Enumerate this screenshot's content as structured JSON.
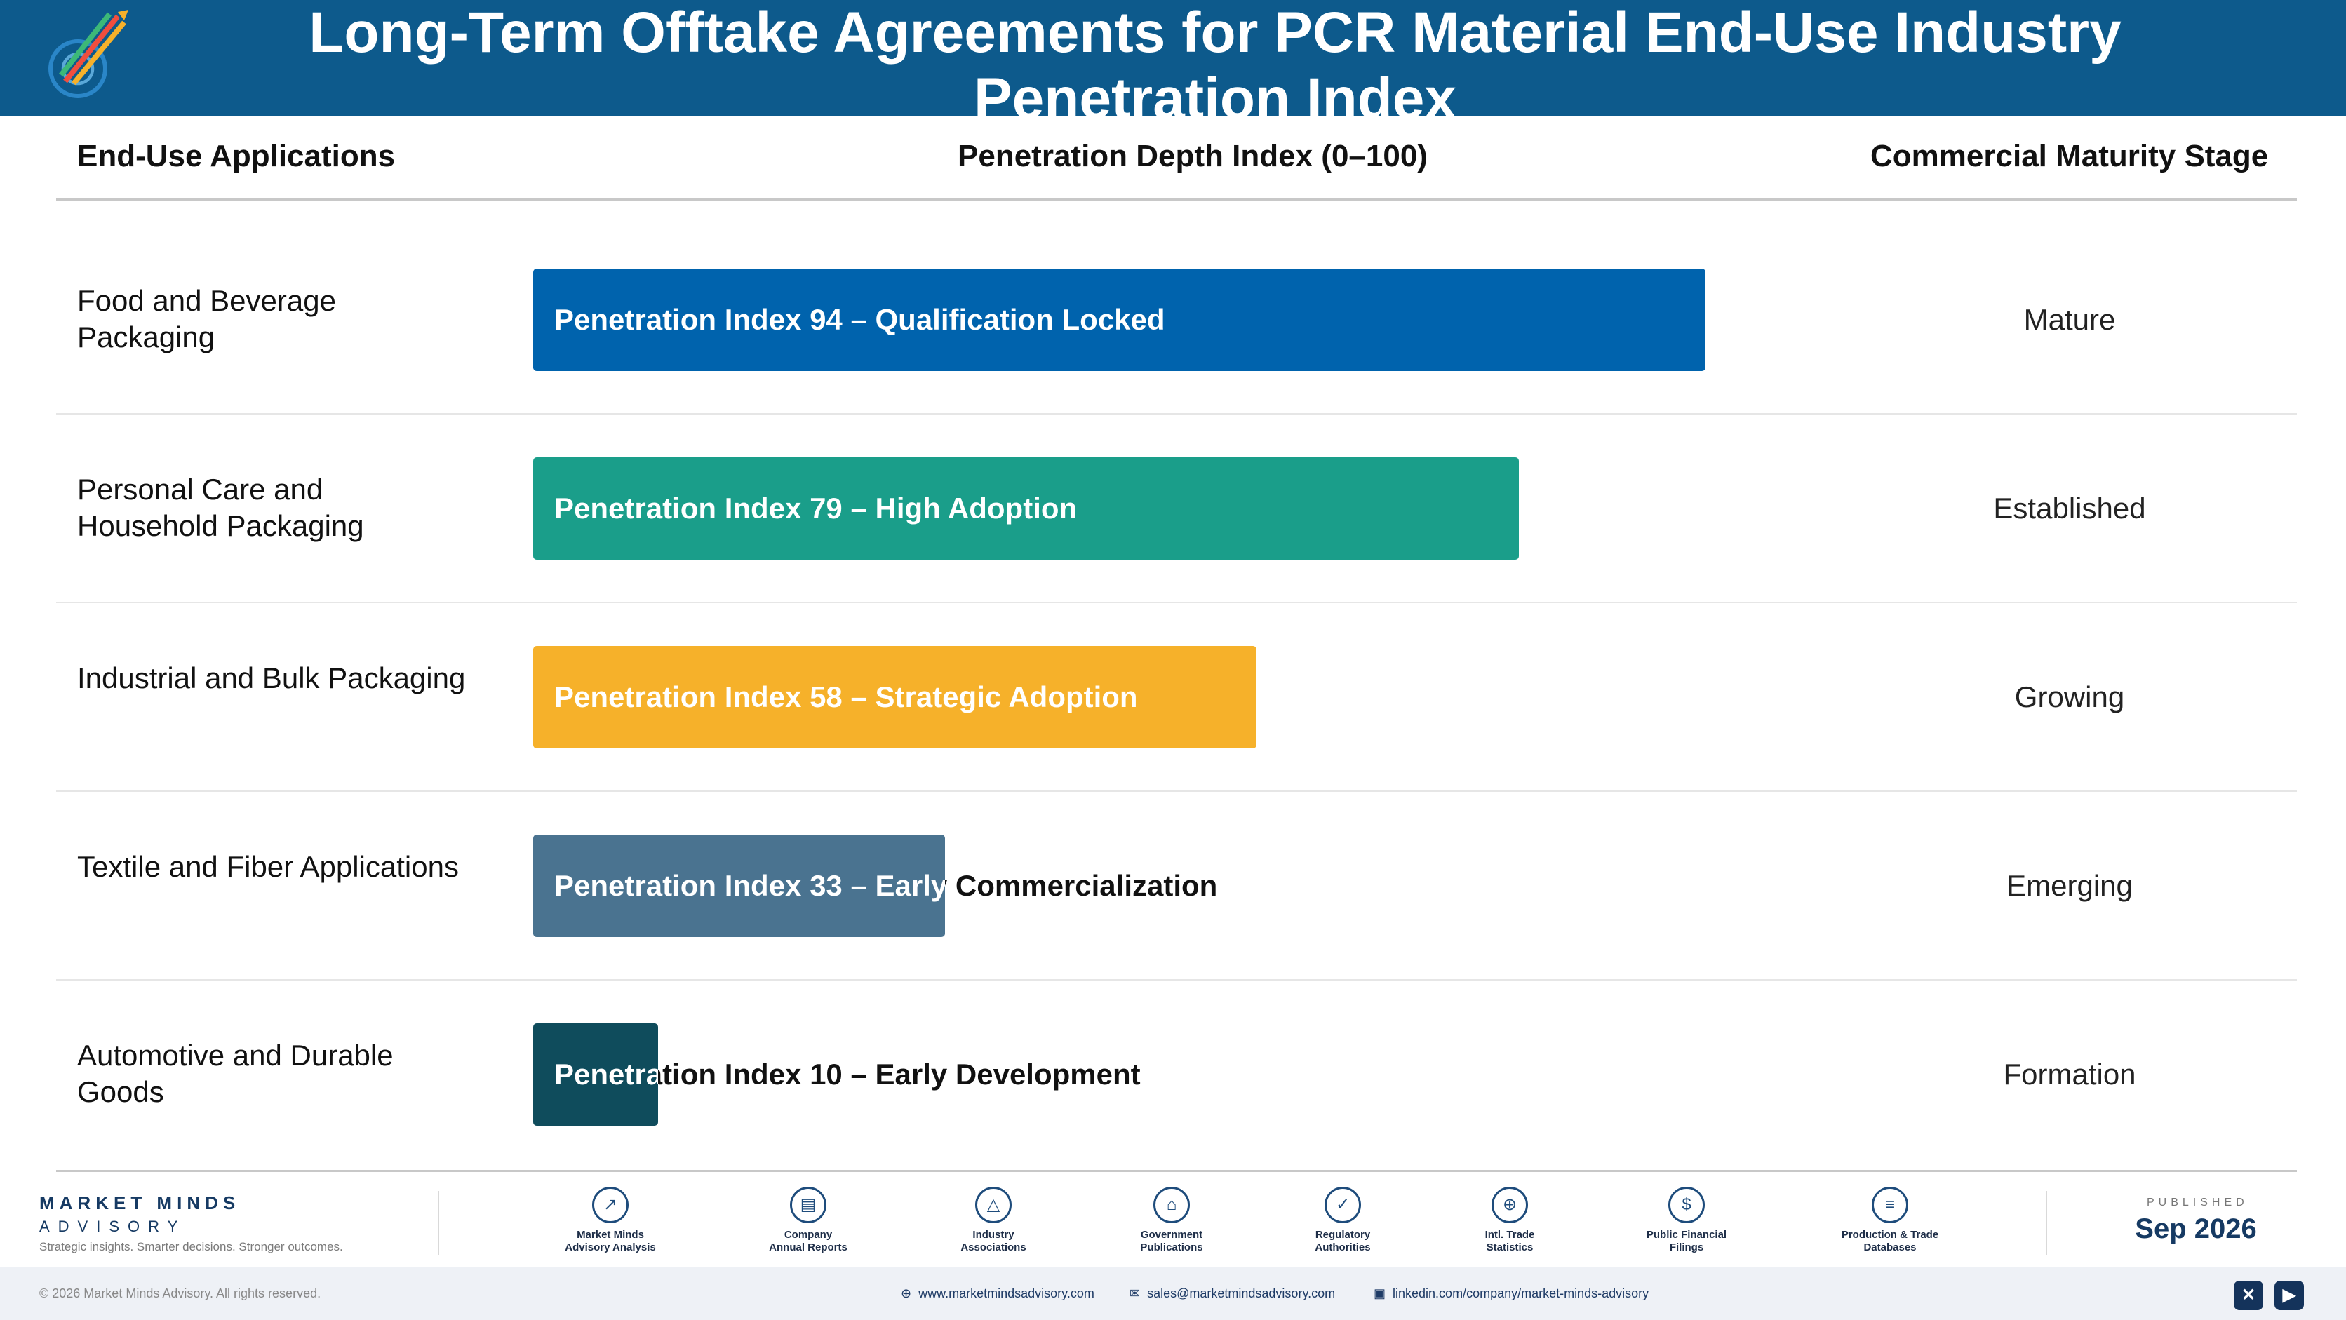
{
  "header": {
    "title": "Long-Term Offtake Agreements for PCR Material End-Use Industry Penetration Index",
    "logo_icon": "arrows-target-logo-icon"
  },
  "chart_data": {
    "type": "bar",
    "orientation": "horizontal",
    "columns": [
      "End-Use Applications",
      "Penetration Depth Index (0–100)",
      "Commercial Maturity Stage"
    ],
    "xlim": [
      0,
      100
    ],
    "rows": [
      {
        "category": "Food and Beverage Packaging",
        "value": 94,
        "label": "Penetration Index 94 – Qualification Locked",
        "stage": "Mature",
        "color": "#0063ad"
      },
      {
        "category": "Personal Care and Household Packaging",
        "value": 79,
        "label": "Penetration Index 79 – High Adoption",
        "stage": "Established",
        "color": "#1a9e8a"
      },
      {
        "category": "Industrial and Bulk Packaging",
        "value": 58,
        "label": "Penetration Index 58 – Strategic Adoption",
        "stage": "Growing",
        "color": "#f6b12a"
      },
      {
        "category": "Textile and Fiber Applications",
        "value": 33,
        "label": "Penetration Index 33 – Early Commercialization",
        "stage": "Emerging",
        "color": "#4a7390"
      },
      {
        "category": "Automotive and Durable Goods",
        "value": 10,
        "label": "Penetration Index 10 – Early Development",
        "stage": "Formation",
        "color": "#0f4c5c"
      }
    ]
  },
  "footer": {
    "brand_line1": "MARKET MINDS",
    "brand_line2": "ADVISORY",
    "tagline": "Strategic insights. Smarter decisions. Stronger outcomes.",
    "sources": [
      {
        "label": "Market Minds\nAdvisory Analysis",
        "icon": "trend-chart-icon"
      },
      {
        "label": "Company\nAnnual Reports",
        "icon": "document-icon"
      },
      {
        "label": "Industry\nAssociations",
        "icon": "network-icon"
      },
      {
        "label": "Government\nPublications",
        "icon": "government-building-icon"
      },
      {
        "label": "Regulatory\nAuthorities",
        "icon": "shield-check-icon"
      },
      {
        "label": "Intl. Trade\nStatistics",
        "icon": "globe-icon"
      },
      {
        "label": "Public Financial\nFilings",
        "icon": "dollar-coin-icon"
      },
      {
        "label": "Production & Trade\nDatabases",
        "icon": "database-icon"
      }
    ],
    "published_label": "PUBLISHED",
    "published_date": "Sep 2026",
    "copyright": "© 2026 Market Minds Advisory. All rights reserved.",
    "website": "www.marketmindsadvisory.com",
    "email": "sales@marketmindsadvisory.com",
    "linkedin": "linkedin.com/company/market-minds-advisory",
    "social": [
      {
        "name": "x-icon",
        "glyph": "✕"
      },
      {
        "name": "youtube-icon",
        "glyph": "▶"
      }
    ]
  }
}
